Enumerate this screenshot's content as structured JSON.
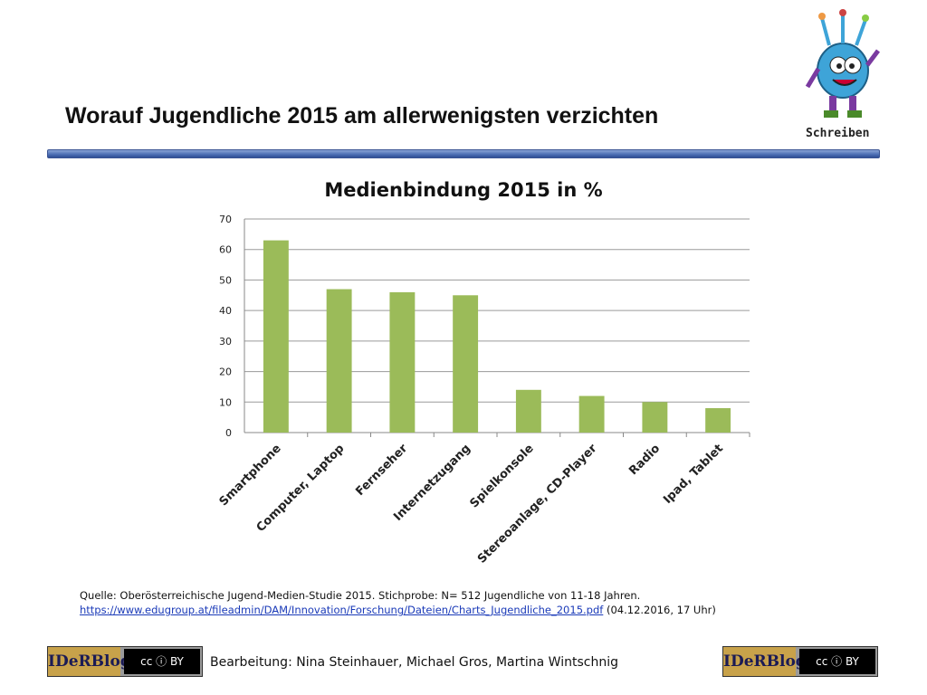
{
  "slide": {
    "title": "Worauf Jugendliche 2015 am allerwenigsten verzichten",
    "mascot_label": "Schreiben"
  },
  "chart_data": {
    "type": "bar",
    "title": "Medienbindung 2015 in %",
    "categories": [
      "Smartphone",
      "Computer, Laptop",
      "Fernseher",
      "Internetzugang",
      "Spielkonsole",
      "Stereoanlage, CD-Player",
      "Radio",
      "Ipad, Tablet"
    ],
    "values": [
      63,
      47,
      46,
      45,
      14,
      12,
      10,
      8
    ],
    "ylim": [
      0,
      70
    ],
    "yticks": [
      0,
      10,
      20,
      30,
      40,
      50,
      60,
      70
    ],
    "grid": true,
    "legend": "none",
    "bar_color": "#9bbb59"
  },
  "source": {
    "text": "Quelle: Oberösterreichische Jugend-Medien-Studie 2015.  Stichprobe: N= 512 Jugendliche von 11-18 Jahren.",
    "link": "https://www.edugroup.at/fileadmin/DAM/Innovation/Forschung/Dateien/Charts_Jugendliche_2015.pdf",
    "date": "(04.12.2016, 17 Uhr)"
  },
  "footer": {
    "logo_brand": "IDeRBlog",
    "license": "cc ⓘ BY",
    "credits": "Bearbeitung: Nina Steinhauer, Michael Gros, Martina Wintschnig"
  }
}
